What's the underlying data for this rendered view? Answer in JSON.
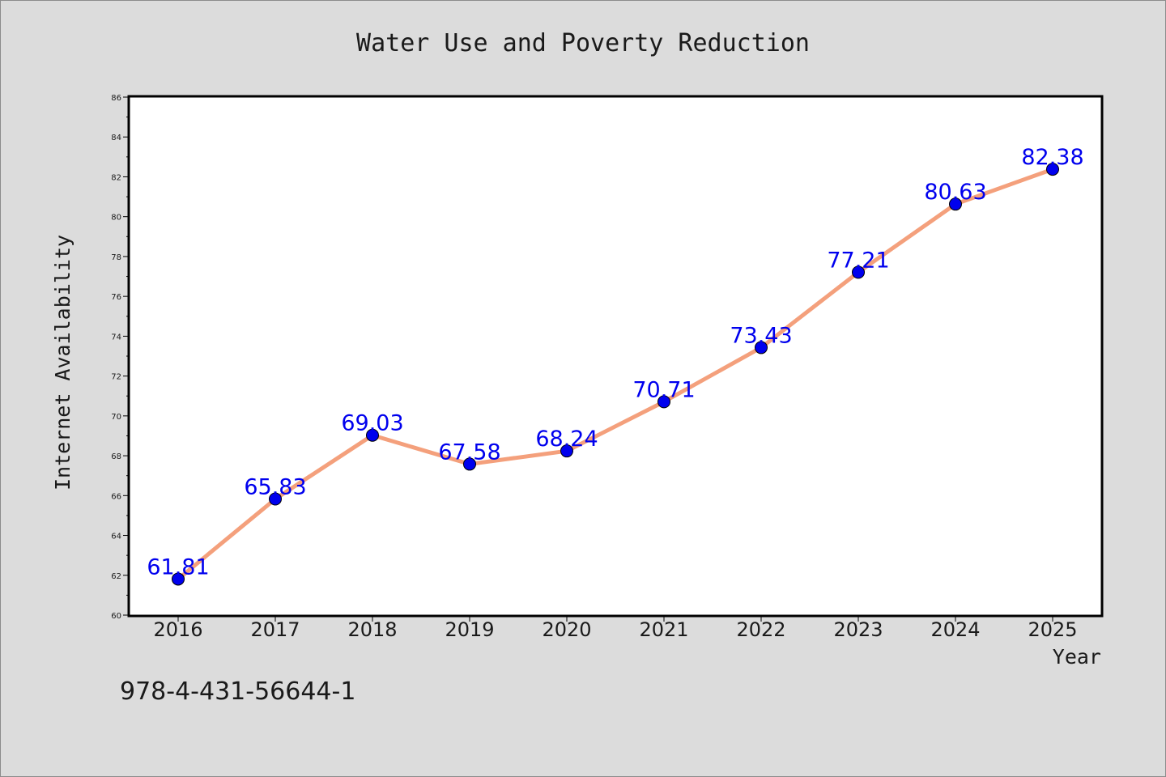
{
  "chart_data": {
    "type": "line",
    "title": "Water Use and Poverty Reduction",
    "xlabel": "Year",
    "ylabel": "Internet Availability",
    "categories": [
      "2016",
      "2017",
      "2018",
      "2019",
      "2020",
      "2021",
      "2022",
      "2023",
      "2024",
      "2025"
    ],
    "values": [
      61.81,
      65.83,
      69.03,
      67.58,
      68.24,
      70.71,
      73.43,
      77.21,
      80.63,
      82.38
    ],
    "value_labels": [
      "61.81",
      "65.83",
      "69.03",
      "67.58",
      "68.24",
      "70.71",
      "73.43",
      "77.21",
      "80.63",
      "82.38"
    ],
    "ylim": [
      60,
      86
    ],
    "yticks": [
      "60",
      "62",
      "64",
      "66",
      "68",
      "70",
      "72",
      "74",
      "76",
      "78",
      "80",
      "82",
      "84",
      "86"
    ],
    "grid": false,
    "legend": "none",
    "colors": {
      "line": "#f4a07c",
      "marker": "#0000ee",
      "data_label": "#0000ee",
      "plot_background": "#ffffff",
      "figure_background": "#dcdcdc"
    }
  },
  "footer": {
    "identifier": "978-4-431-56644-1"
  }
}
